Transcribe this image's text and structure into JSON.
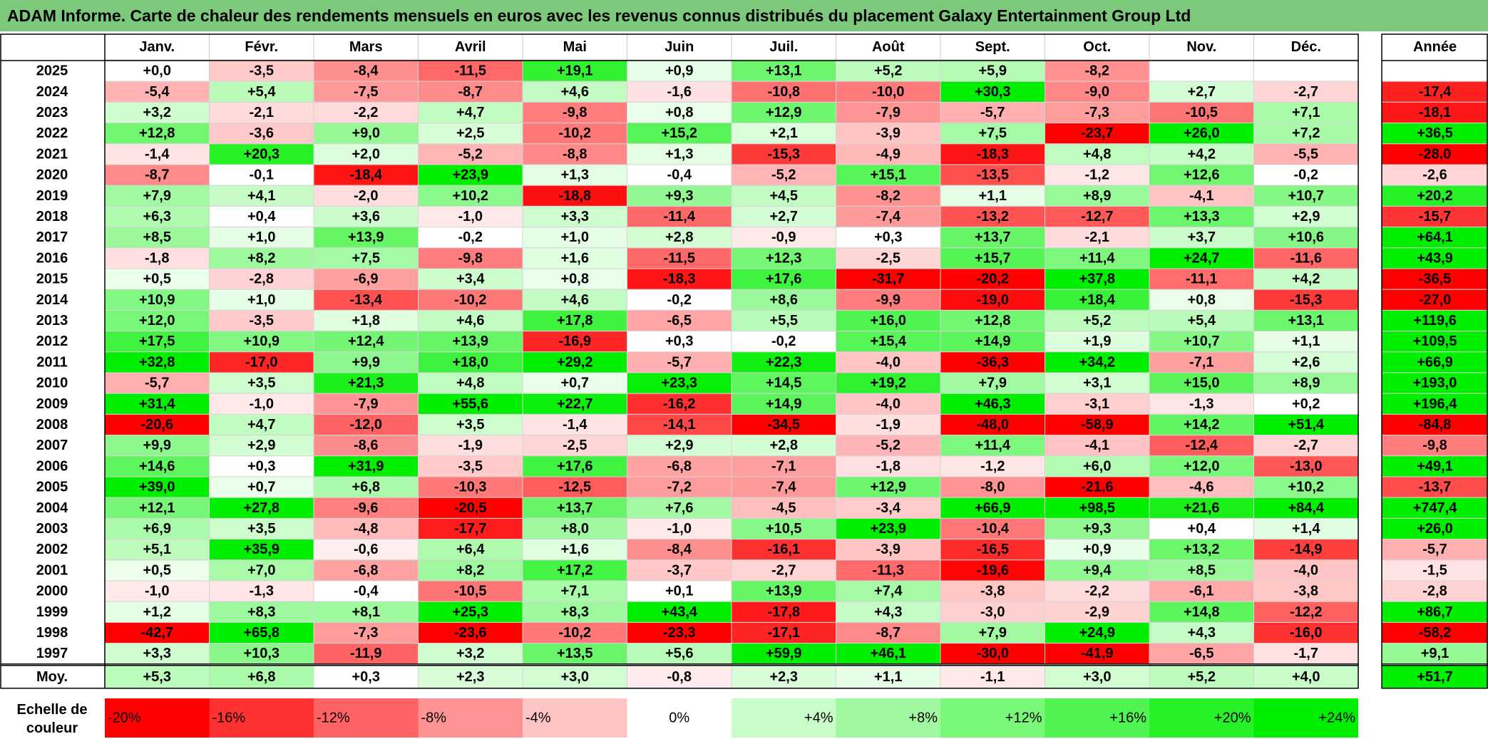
{
  "title": "ADAM Informe. Carte de chaleur des rendements mensuels en euros avec les revenus connus distribués du placement Galaxy Entertainment Group Ltd",
  "colors": {
    "title_bg": "#7cc97c",
    "negative_max": "#ff0000",
    "positive_max": "#00ee00",
    "neutral": "#ffffff"
  },
  "chart_data": {
    "type": "heatmap",
    "title": "ADAM Informe. Carte de chaleur des rendements mensuels en euros avec les revenus connus distribués du placement Galaxy Entertainment Group Ltd",
    "months": [
      "Janv.",
      "Févr.",
      "Mars",
      "Avril",
      "Mai",
      "Juin",
      "Juil.",
      "Août",
      "Sept.",
      "Oct.",
      "Nov.",
      "Déc."
    ],
    "year_header": "Année",
    "avg_label": "Moy.",
    "scale_label": "Echelle de couleur",
    "rows": [
      {
        "year": "2025",
        "values": [
          "+0,0",
          "-3,5",
          "-8,4",
          "-11,5",
          "+19,1",
          "+0,9",
          "+13,1",
          "+5,2",
          "+5,9",
          "-8,2",
          "",
          ""
        ],
        "annual": ""
      },
      {
        "year": "2024",
        "values": [
          "-5,4",
          "+5,4",
          "-7,5",
          "-8,7",
          "+4,6",
          "-1,6",
          "-10,8",
          "-10,0",
          "+30,3",
          "-9,0",
          "+2,7",
          "-2,7"
        ],
        "annual": "-17,4"
      },
      {
        "year": "2023",
        "values": [
          "+3,2",
          "-2,1",
          "-2,2",
          "+4,7",
          "-9,8",
          "+0,8",
          "+12,9",
          "-7,9",
          "-5,7",
          "-7,3",
          "-10,5",
          "+7,1"
        ],
        "annual": "-18,1"
      },
      {
        "year": "2022",
        "values": [
          "+12,8",
          "-3,6",
          "+9,0",
          "+2,5",
          "-10,2",
          "+15,2",
          "+2,1",
          "-3,9",
          "+7,5",
          "-23,7",
          "+26,0",
          "+7,2"
        ],
        "annual": "+36,5"
      },
      {
        "year": "2021",
        "values": [
          "-1,4",
          "+20,3",
          "+2,0",
          "-5,2",
          "-8,8",
          "+1,3",
          "-15,3",
          "-4,9",
          "-18,3",
          "+4,8",
          "+4,2",
          "-5,5"
        ],
        "annual": "-28,0"
      },
      {
        "year": "2020",
        "values": [
          "-8,7",
          "-0,1",
          "-18,4",
          "+23,9",
          "+1,3",
          "-0,4",
          "-5,2",
          "+15,1",
          "-13,5",
          "-1,2",
          "+12,6",
          "-0,2"
        ],
        "annual": "-2,6"
      },
      {
        "year": "2019",
        "values": [
          "+7,9",
          "+4,1",
          "-2,0",
          "+10,2",
          "-18,8",
          "+9,3",
          "+4,5",
          "-8,2",
          "+1,1",
          "+8,9",
          "-4,1",
          "+10,7"
        ],
        "annual": "+20,2"
      },
      {
        "year": "2018",
        "values": [
          "+6,3",
          "+0,4",
          "+3,6",
          "-1,0",
          "+3,3",
          "-11,4",
          "+2,7",
          "-7,4",
          "-13,2",
          "-12,7",
          "+13,3",
          "+2,9"
        ],
        "annual": "-15,7"
      },
      {
        "year": "2017",
        "values": [
          "+8,5",
          "+1,0",
          "+13,9",
          "-0,2",
          "+1,0",
          "+2,8",
          "-0,9",
          "+0,3",
          "+13,7",
          "-2,1",
          "+3,7",
          "+10,6"
        ],
        "annual": "+64,1"
      },
      {
        "year": "2016",
        "values": [
          "-1,8",
          "+8,2",
          "+7,5",
          "-9,8",
          "+1,6",
          "-11,5",
          "+12,3",
          "-2,5",
          "+15,7",
          "+11,4",
          "+24,7",
          "-11,6"
        ],
        "annual": "+43,9"
      },
      {
        "year": "2015",
        "values": [
          "+0,5",
          "-2,8",
          "-6,9",
          "+3,4",
          "+0,8",
          "-18,3",
          "+17,6",
          "-31,7",
          "-20,2",
          "+37,8",
          "-11,1",
          "+4,2"
        ],
        "annual": "-36,5"
      },
      {
        "year": "2014",
        "values": [
          "+10,9",
          "+1,0",
          "-13,4",
          "-10,2",
          "+4,6",
          "-0,2",
          "+8,6",
          "-9,9",
          "-19,0",
          "+18,4",
          "+0,8",
          "-15,3"
        ],
        "annual": "-27,0"
      },
      {
        "year": "2013",
        "values": [
          "+12,0",
          "-3,5",
          "+1,8",
          "+4,6",
          "+17,8",
          "-6,5",
          "+5,5",
          "+16,0",
          "+12,8",
          "+5,2",
          "+5,4",
          "+13,1"
        ],
        "annual": "+119,6"
      },
      {
        "year": "2012",
        "values": [
          "+17,5",
          "+10,9",
          "+12,4",
          "+13,9",
          "-16,9",
          "+0,3",
          "-0,2",
          "+15,4",
          "+14,9",
          "+1,9",
          "+10,7",
          "+1,1"
        ],
        "annual": "+109,5"
      },
      {
        "year": "2011",
        "values": [
          "+32,8",
          "-17,0",
          "+9,9",
          "+18,0",
          "+29,2",
          "-5,7",
          "+22,3",
          "-4,0",
          "-36,3",
          "+34,2",
          "-7,1",
          "+2,6"
        ],
        "annual": "+66,9"
      },
      {
        "year": "2010",
        "values": [
          "-5,7",
          "+3,5",
          "+21,3",
          "+4,8",
          "+0,7",
          "+23,3",
          "+14,5",
          "+19,2",
          "+7,9",
          "+3,1",
          "+15,0",
          "+8,9"
        ],
        "annual": "+193,0"
      },
      {
        "year": "2009",
        "values": [
          "+31,4",
          "-1,0",
          "-7,9",
          "+55,6",
          "+22,7",
          "-16,2",
          "+14,9",
          "-4,0",
          "+46,3",
          "-3,1",
          "-1,3",
          "+0,2"
        ],
        "annual": "+196,4"
      },
      {
        "year": "2008",
        "values": [
          "-20,6",
          "+4,7",
          "-12,0",
          "+3,5",
          "-1,4",
          "-14,1",
          "-34,5",
          "-1,9",
          "-48,0",
          "-58,9",
          "+14,2",
          "+51,4"
        ],
        "annual": "-84,8"
      },
      {
        "year": "2007",
        "values": [
          "+9,9",
          "+2,9",
          "-8,6",
          "-1,9",
          "-2,5",
          "+2,9",
          "+2,8",
          "-5,2",
          "+11,4",
          "-4,1",
          "-12,4",
          "-2,7"
        ],
        "annual": "-9,8"
      },
      {
        "year": "2006",
        "values": [
          "+14,6",
          "+0,3",
          "+31,9",
          "-3,5",
          "+17,6",
          "-6,8",
          "-7,1",
          "-1,8",
          "-1,2",
          "+6,0",
          "+12,0",
          "-13,0"
        ],
        "annual": "+49,1"
      },
      {
        "year": "2005",
        "values": [
          "+39,0",
          "+0,7",
          "+6,8",
          "-10,3",
          "-12,5",
          "-7,2",
          "-7,4",
          "+12,9",
          "-8,0",
          "-21,6",
          "-4,6",
          "+10,2"
        ],
        "annual": "-13,7"
      },
      {
        "year": "2004",
        "values": [
          "+12,1",
          "+27,8",
          "-9,6",
          "-20,5",
          "+13,7",
          "+7,6",
          "-4,5",
          "-3,4",
          "+66,9",
          "+98,5",
          "+21,6",
          "+84,4"
        ],
        "annual": "+747,4"
      },
      {
        "year": "2003",
        "values": [
          "+6,9",
          "+3,5",
          "-4,8",
          "-17,7",
          "+8,0",
          "-1,0",
          "+10,5",
          "+23,9",
          "-10,4",
          "+9,3",
          "+0,4",
          "+1,4"
        ],
        "annual": "+26,0"
      },
      {
        "year": "2002",
        "values": [
          "+5,1",
          "+35,9",
          "-0,6",
          "+6,4",
          "+1,6",
          "-8,4",
          "-16,1",
          "-3,9",
          "-16,5",
          "+0,9",
          "+13,2",
          "-14,9"
        ],
        "annual": "-5,7"
      },
      {
        "year": "2001",
        "values": [
          "+0,5",
          "+7,0",
          "-6,8",
          "+8,2",
          "+17,2",
          "-3,7",
          "-2,7",
          "-11,3",
          "-19,6",
          "+9,4",
          "+8,5",
          "-4,0"
        ],
        "annual": "-1,5"
      },
      {
        "year": "2000",
        "values": [
          "-1,0",
          "-1,3",
          "-0,4",
          "-10,5",
          "+7,1",
          "+0,1",
          "+13,9",
          "+7,4",
          "-3,8",
          "-2,2",
          "-6,1",
          "-3,8"
        ],
        "annual": "-2,8"
      },
      {
        "year": "1999",
        "values": [
          "+1,2",
          "+8,3",
          "+8,1",
          "+25,3",
          "+8,3",
          "+43,4",
          "-17,8",
          "+4,3",
          "-3,0",
          "-2,9",
          "+14,8",
          "-12,2"
        ],
        "annual": "+86,7"
      },
      {
        "year": "1998",
        "values": [
          "-42,7",
          "+65,8",
          "-7,3",
          "-23,6",
          "-10,2",
          "-23,3",
          "-17,1",
          "-8,7",
          "+7,9",
          "+24,9",
          "+4,3",
          "-16,0"
        ],
        "annual": "-58,2"
      },
      {
        "year": "1997",
        "values": [
          "+3,3",
          "+10,3",
          "-11,9",
          "+3,2",
          "+13,5",
          "+5,6",
          "+59,9",
          "+46,1",
          "-30,0",
          "-41,9",
          "-6,5",
          "-1,7"
        ],
        "annual": "+9,1"
      }
    ],
    "averages": [
      "+5,3",
      "+6,8",
      "+0,3",
      "+2,3",
      "+3,0",
      "-0,8",
      "+2,3",
      "+1,1",
      "-1,1",
      "+3,0",
      "+5,2",
      "+4,0"
    ],
    "average_annual": "+51,7",
    "scale": [
      {
        "label": "-20%",
        "value": -20
      },
      {
        "label": "-16%",
        "value": -16
      },
      {
        "label": "-12%",
        "value": -12
      },
      {
        "label": "-8%",
        "value": -8
      },
      {
        "label": "-4%",
        "value": -4
      },
      {
        "label": "0%",
        "value": 0
      },
      {
        "label": "+4%",
        "value": 4
      },
      {
        "label": "+8%",
        "value": 8
      },
      {
        "label": "+12%",
        "value": 12
      },
      {
        "label": "+16%",
        "value": 16
      },
      {
        "label": "+20%",
        "value": 20
      },
      {
        "label": "+24%",
        "value": 24
      }
    ]
  }
}
